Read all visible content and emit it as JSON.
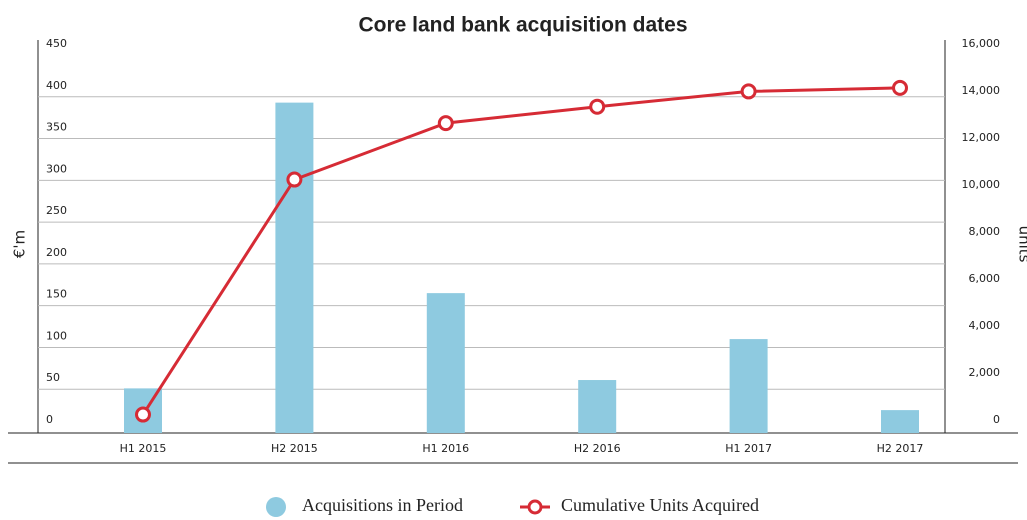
{
  "chart_data": {
    "type": "bar-line",
    "title": "Core land bank acquisition dates",
    "y_label": "€'m",
    "y2_label": "units",
    "categories": [
      "H1 2015",
      "H2 2015",
      "H1 2016",
      "H2 2016",
      "H1 2017",
      "H2 2017"
    ],
    "series": [
      {
        "name": "Acquisitions in Period",
        "type": "bar",
        "color": "#8ecae0",
        "values": [
          51,
          393,
          165,
          61,
          110,
          25
        ]
      },
      {
        "name": "Cumulative Units Acquired",
        "type": "line",
        "axis": "y2",
        "color": "#d62b35",
        "values": [
          700,
          10700,
          13100,
          13800,
          14450,
          14600
        ]
      }
    ],
    "ylim": [
      0,
      450
    ],
    "yticks": [
      0,
      50,
      100,
      150,
      200,
      250,
      300,
      350,
      400,
      450
    ],
    "y2lim": [
      0,
      16000
    ],
    "y2ticks": [
      0,
      {
        "value": 2000,
        "label": "2,000"
      },
      {
        "value": 4000,
        "label": "4,000"
      },
      {
        "value": 6000,
        "label": "6,000"
      },
      {
        "value": 8000,
        "label": "8,000"
      },
      {
        "value": 10000,
        "label": "10,000"
      },
      {
        "value": 12000,
        "label": "12,000"
      },
      {
        "value": 14000,
        "label": "14,000"
      },
      {
        "value": 16000,
        "label": "16,000"
      }
    ],
    "grid": true
  }
}
